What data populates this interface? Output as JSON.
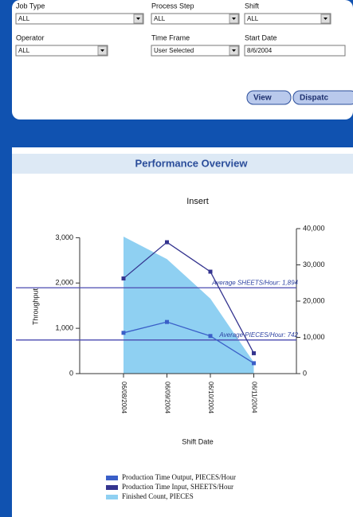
{
  "form": {
    "fields": [
      {
        "label": "Job Type",
        "value": "ALL"
      },
      {
        "label": "Process Step",
        "value": "ALL"
      },
      {
        "label": "Shift",
        "value": "ALL"
      },
      {
        "label": "Operator",
        "value": "ALL"
      },
      {
        "label": "Time Frame",
        "value": "User Selected"
      },
      {
        "label": "Start Date",
        "value": "8/6/2004"
      }
    ],
    "buttons": [
      "View",
      "Dispatc"
    ]
  },
  "section_title": "Performance Overview",
  "chart_data": {
    "type": "line",
    "title": "Insert",
    "x_label": "Shift Date",
    "y_label": "Throughput",
    "categories": [
      "06/08/2004",
      "06/09/2004",
      "06/10/2004",
      "06/11/2004"
    ],
    "ylim": [
      0,
      3200
    ],
    "yticks": [
      0,
      {
        "value": 1000,
        "label": "1,000"
      },
      {
        "value": 2000,
        "label": "2,000"
      },
      {
        "value": 3000,
        "label": "3,000"
      }
    ],
    "y2lim": [
      0,
      40000
    ],
    "y2ticks": [
      0,
      {
        "value": 10000,
        "label": "10,000"
      },
      {
        "value": 20000,
        "label": "20,000"
      },
      {
        "value": 30000,
        "label": "30,000"
      },
      {
        "value": 40000,
        "label": "40,000"
      }
    ],
    "series": [
      {
        "name": "Production Time Output, PIECES/Hour",
        "color": "#3a5fc8",
        "values": [
          900,
          1140,
          830,
          230
        ]
      },
      {
        "name": "Production Time Input, SHEETS/Hour",
        "color": "#34348f",
        "values": [
          2100,
          2900,
          2250,
          450
        ]
      },
      {
        "name": "Finished Count, PIECES",
        "color": "#8fd0f2",
        "values": [
          37800,
          31600,
          20700,
          3100
        ],
        "axis": "y2",
        "type": "area"
      }
    ],
    "annotations": [
      {
        "label": "Average SHEETS/Hour: 1,894",
        "value": 1894
      },
      {
        "label": "Average PIECES/Hour: 742",
        "value": 742
      }
    ]
  }
}
